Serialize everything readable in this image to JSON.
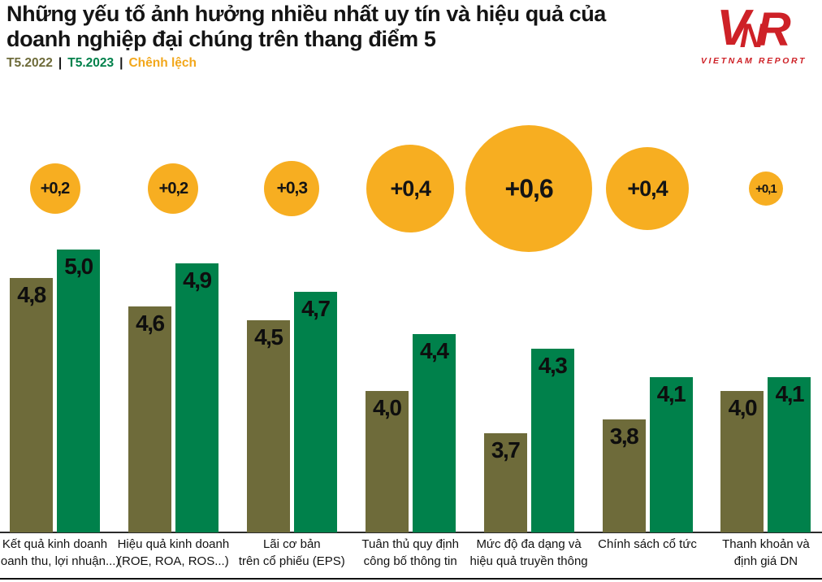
{
  "header": {
    "title": "Những yếu tố ảnh hưởng nhiều nhất uy tín và hiệu quả của doanh nghiệp đại chúng trên thang điểm 5",
    "legend": {
      "series_2022": "T5.2022",
      "series_2023": "T5.2023",
      "diff": "Chênh lệch",
      "separator": "|"
    }
  },
  "logo": {
    "monogram_v": "V",
    "monogram_n": "N",
    "monogram_r": "R",
    "caption": "VIETNAM REPORT"
  },
  "colors": {
    "olive": "#6E6B3A",
    "green": "#00814B",
    "orange": "#F7AE21",
    "logo_red": "#CE2127",
    "ink": "#141414"
  },
  "chart_data": {
    "type": "bar",
    "title": "Những yếu tố ảnh hưởng nhiều nhất uy tín và hiệu quả của doanh nghiệp đại chúng trên thang điểm 5",
    "legend_position": "top-left",
    "grid": false,
    "axis_hidden": true,
    "ylim": [
      3.0,
      5.0
    ],
    "scale_max": 5,
    "categories": [
      "Kết quả kinh doanh (doanh thu, lợi nhuận...)",
      "Hiệu quả kinh doanh (ROE, ROA, ROS...)",
      "Lãi cơ bản trên cổ phiếu (EPS)",
      "Tuân thủ quy định công bố thông tin",
      "Mức độ đa dạng và hiệu quả truyền thông",
      "Chính sách cổ tức",
      "Thanh khoản và định giá DN"
    ],
    "category_lines": [
      [
        "Kết quả kinh doanh",
        "(doanh thu, lợi nhuận...)"
      ],
      [
        "Hiệu quả kinh doanh",
        "(ROE, ROA, ROS...)"
      ],
      [
        "Lãi cơ bản",
        "trên cổ phiếu (EPS)"
      ],
      [
        "Tuân thủ quy định",
        "công bố thông tin"
      ],
      [
        "Mức độ đa dạng và",
        "hiệu quả truyền thông"
      ],
      [
        "Chính sách cổ tức"
      ],
      [
        "Thanh khoản và",
        "định giá DN"
      ]
    ],
    "series": [
      {
        "name": "T5.2022",
        "color": "#6E6B3A",
        "values": [
          4.8,
          4.6,
          4.5,
          4.0,
          3.7,
          3.8,
          4.0
        ]
      },
      {
        "name": "T5.2023",
        "color": "#00814B",
        "values": [
          5.0,
          4.9,
          4.7,
          4.4,
          4.3,
          4.1,
          4.1
        ]
      }
    ],
    "value_labels": [
      [
        "4,8",
        "5,0"
      ],
      [
        "4,6",
        "4,9"
      ],
      [
        "4,5",
        "4,7"
      ],
      [
        "4,0",
        "4,4"
      ],
      [
        "3,7",
        "4,3"
      ],
      [
        "3,8",
        "4,1"
      ],
      [
        "4,0",
        "4,1"
      ]
    ],
    "diff_series": {
      "name": "Chênh lệch",
      "color": "#F7AE21",
      "values": [
        0.2,
        0.2,
        0.3,
        0.4,
        0.6,
        0.4,
        0.1
      ],
      "labels": [
        "+0,2",
        "+0,2",
        "+0,3",
        "+0,4",
        "+0,6",
        "+0,4",
        "+0,1"
      ]
    }
  }
}
